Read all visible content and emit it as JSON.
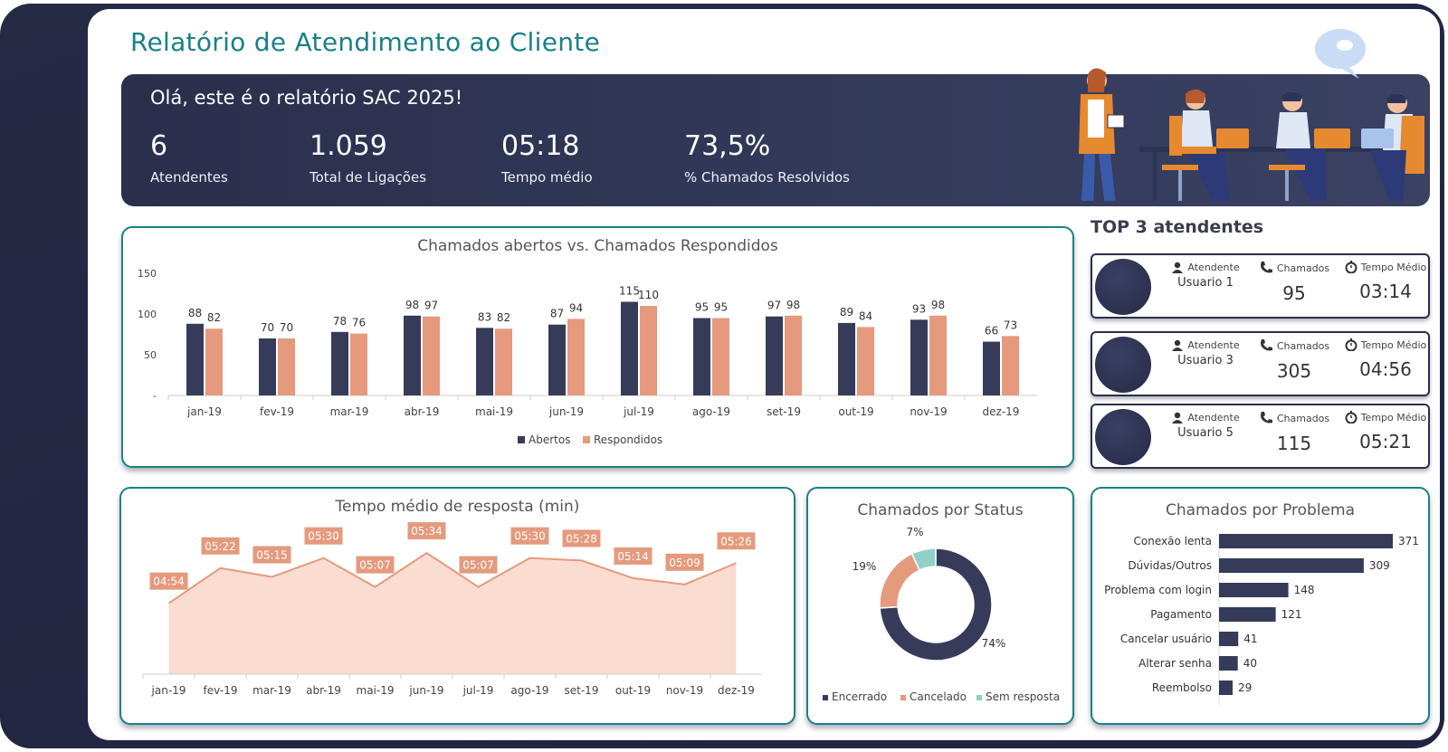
{
  "page": {
    "title": "Relatório de Atendimento ao Cliente"
  },
  "hero": {
    "greeting": "Olá, este é o relatório SAC 2025!",
    "kpis": [
      {
        "value": "6",
        "label": "Atendentes"
      },
      {
        "value": "1.059",
        "label": "Total de Ligações"
      },
      {
        "value": "05:18",
        "label": "Tempo médio"
      },
      {
        "value": "73,5%",
        "label": "% Chamados Resolvidos"
      }
    ]
  },
  "top3": {
    "title": "TOP 3 atendentes",
    "headers": {
      "agent": "Atendente",
      "calls": "Chamados",
      "time": "Tempo Médio"
    },
    "agents": [
      {
        "name": "Usuario 1",
        "calls": "95",
        "time": "03:14"
      },
      {
        "name": "Usuario 3",
        "calls": "305",
        "time": "04:56"
      },
      {
        "name": "Usuario 5",
        "calls": "115",
        "time": "05:21"
      }
    ]
  },
  "colors": {
    "abertos": "#363b5a",
    "respondidos": "#e59a7e",
    "area_fill": "#fbdcd0",
    "area_line": "#e59a7e",
    "teal": "#1a8086",
    "sem_resposta": "#8fd1c9"
  },
  "chart_data": [
    {
      "type": "bar",
      "title": "Chamados abertos vs. Chamados Respondidos",
      "categories": [
        "jan-19",
        "fev-19",
        "mar-19",
        "abr-19",
        "mai-19",
        "jun-19",
        "jul-19",
        "ago-19",
        "set-19",
        "out-19",
        "nov-19",
        "dez-19"
      ],
      "series": [
        {
          "name": "Abertos",
          "values": [
            88,
            70,
            78,
            98,
            83,
            87,
            115,
            95,
            97,
            89,
            93,
            66
          ]
        },
        {
          "name": "Respondidos",
          "values": [
            82,
            70,
            76,
            97,
            82,
            94,
            110,
            95,
            98,
            84,
            98,
            73
          ]
        }
      ],
      "ylim": [
        0,
        150
      ],
      "yticks": [
        "-",
        "50",
        "100",
        "150"
      ],
      "legend": "bottom"
    },
    {
      "type": "area",
      "title": "Tempo médio de resposta (min)",
      "categories": [
        "jan-19",
        "fev-19",
        "mar-19",
        "abr-19",
        "mai-19",
        "jun-19",
        "jul-19",
        "ago-19",
        "set-19",
        "out-19",
        "nov-19",
        "dez-19"
      ],
      "values": [
        4.9,
        5.367,
        5.25,
        5.5,
        5.117,
        5.567,
        5.117,
        5.5,
        5.467,
        5.233,
        5.15,
        5.433
      ],
      "labels": [
        "04:54",
        "05:22",
        "05:15",
        "05:30",
        "05:07",
        "05:34",
        "05:07",
        "05:30",
        "05:28",
        "05:14",
        "05:09",
        "05:26"
      ]
    },
    {
      "type": "pie",
      "title": "Chamados por Status",
      "categories": [
        "Encerrado",
        "Cancelado",
        "Sem resposta"
      ],
      "values": [
        74,
        19,
        7
      ],
      "labels": [
        "74%",
        "19%",
        "7%"
      ],
      "legend": "bottom"
    },
    {
      "type": "bar",
      "orientation": "horizontal",
      "title": "Chamados por Problema",
      "categories": [
        "Conexão lenta",
        "Dúvidas/Outros",
        "Problema com login",
        "Pagamento",
        "Cancelar usuário",
        "Alterar senha",
        "Reembolso"
      ],
      "values": [
        371,
        309,
        148,
        121,
        41,
        40,
        29
      ]
    }
  ]
}
